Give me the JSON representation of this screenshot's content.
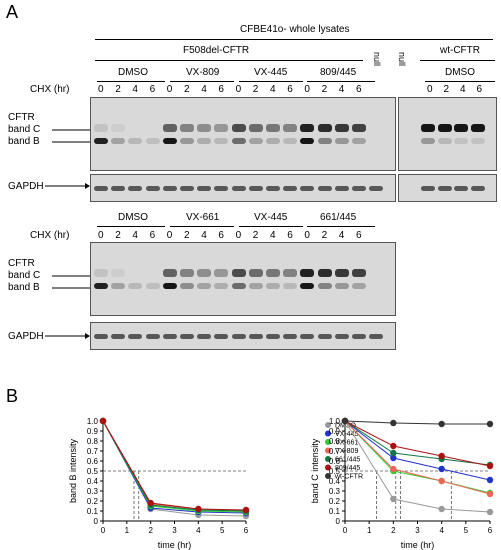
{
  "panel_a": {
    "letter": "A",
    "top_header": "CFBE41o- whole lysates",
    "group_f508": "F508del-CFTR",
    "null_1": "null",
    "null_2": "null",
    "group_wt": "wt-CFTR",
    "cond_row1": [
      "DMSO",
      "VX-809",
      "VX-445",
      "809/445"
    ],
    "wt_cond": "DMSO",
    "chx_label": "CHX (hr)",
    "times": [
      "0",
      "2",
      "4",
      "6"
    ],
    "cftr": "CFTR",
    "band_c": "band C",
    "band_b": "band B",
    "gapdh": "GAPDH",
    "cond_row2": [
      "DMSO",
      "VX-661",
      "VX-445",
      "661/445"
    ],
    "chx_label_2": "CHX (hr)",
    "cftr_2": "CFTR",
    "band_c_2": "band C",
    "band_b_2": "band B",
    "gapdh_2": "GAPDH"
  },
  "panel_b": {
    "letter": "B"
  },
  "chart_data": [
    {
      "type": "line",
      "ylabel": "band B intensity",
      "xlabel": "time (hr)",
      "xlim": [
        0,
        6
      ],
      "ylim": [
        0,
        1.0
      ],
      "x_ticks": [
        "0",
        "1",
        "2",
        "3",
        "4",
        "5",
        "6"
      ],
      "y_ticks": [
        "0",
        "0.1",
        "0.2",
        "0.3",
        "0.4",
        "0.5",
        "0.6",
        "0.7",
        "0.8",
        "0.9",
        "1.0"
      ],
      "x": [
        0,
        2,
        4,
        6
      ],
      "series": [
        {
          "name": "DMSO",
          "color": "#999999",
          "values": [
            1.0,
            0.12,
            0.06,
            0.05
          ]
        },
        {
          "name": "VX-445",
          "color": "#2233cc",
          "values": [
            1.0,
            0.13,
            0.09,
            0.08
          ]
        },
        {
          "name": "VX-661",
          "color": "#33cc33",
          "values": [
            1.0,
            0.15,
            0.1,
            0.09
          ]
        },
        {
          "name": "VX-809",
          "color": "#ee6655",
          "values": [
            1.0,
            0.17,
            0.12,
            0.1
          ]
        },
        {
          "name": "661/445",
          "color": "#117744",
          "values": [
            1.0,
            0.16,
            0.11,
            0.1
          ]
        },
        {
          "name": "809/445",
          "color": "#aa1111",
          "values": [
            1.0,
            0.18,
            0.12,
            0.11
          ]
        }
      ],
      "legend": [
        "DMSO",
        "VX-445",
        "VX-661",
        "VX-809",
        "661/445",
        "809/445",
        "wt-CFTR"
      ],
      "legend_colors": [
        "#999999",
        "#2233cc",
        "#33cc33",
        "#ee6655",
        "#117744",
        "#aa1111",
        "#333333"
      ],
      "ref_y": 0.5,
      "ref_x": [
        1.3,
        1.5
      ]
    },
    {
      "type": "line",
      "ylabel": "band C intensity",
      "xlabel": "time (hr)",
      "xlim": [
        0,
        6
      ],
      "ylim": [
        0,
        1.0
      ],
      "x_ticks": [
        "0",
        "1",
        "2",
        "3",
        "4",
        "5",
        "6"
      ],
      "y_ticks": [
        "0",
        "0.1",
        "0.2",
        "0.3",
        "0.4",
        "0.5",
        "0.6",
        "0.7",
        "0.8",
        "0.9",
        "1.0"
      ],
      "x": [
        0,
        2,
        4,
        6
      ],
      "series": [
        {
          "name": "DMSO",
          "color": "#999999",
          "values": [
            1.0,
            0.22,
            0.12,
            0.09
          ]
        },
        {
          "name": "VX-445",
          "color": "#2233cc",
          "values": [
            1.0,
            0.63,
            0.52,
            0.41
          ]
        },
        {
          "name": "VX-661",
          "color": "#33cc33",
          "values": [
            1.0,
            0.5,
            0.4,
            0.28
          ]
        },
        {
          "name": "VX-809",
          "color": "#ee6655",
          "values": [
            1.0,
            0.52,
            0.4,
            0.27
          ]
        },
        {
          "name": "661/445",
          "color": "#117744",
          "values": [
            1.0,
            0.68,
            0.62,
            0.56
          ]
        },
        {
          "name": "809/445",
          "color": "#aa1111",
          "values": [
            1.0,
            0.75,
            0.65,
            0.55
          ]
        },
        {
          "name": "wt-CFTR",
          "color": "#333333",
          "values": [
            1.0,
            0.98,
            0.97,
            0.97
          ]
        }
      ],
      "ref_y": 0.5,
      "ref_x": [
        1.3,
        2.1,
        2.3,
        4.4
      ]
    }
  ]
}
